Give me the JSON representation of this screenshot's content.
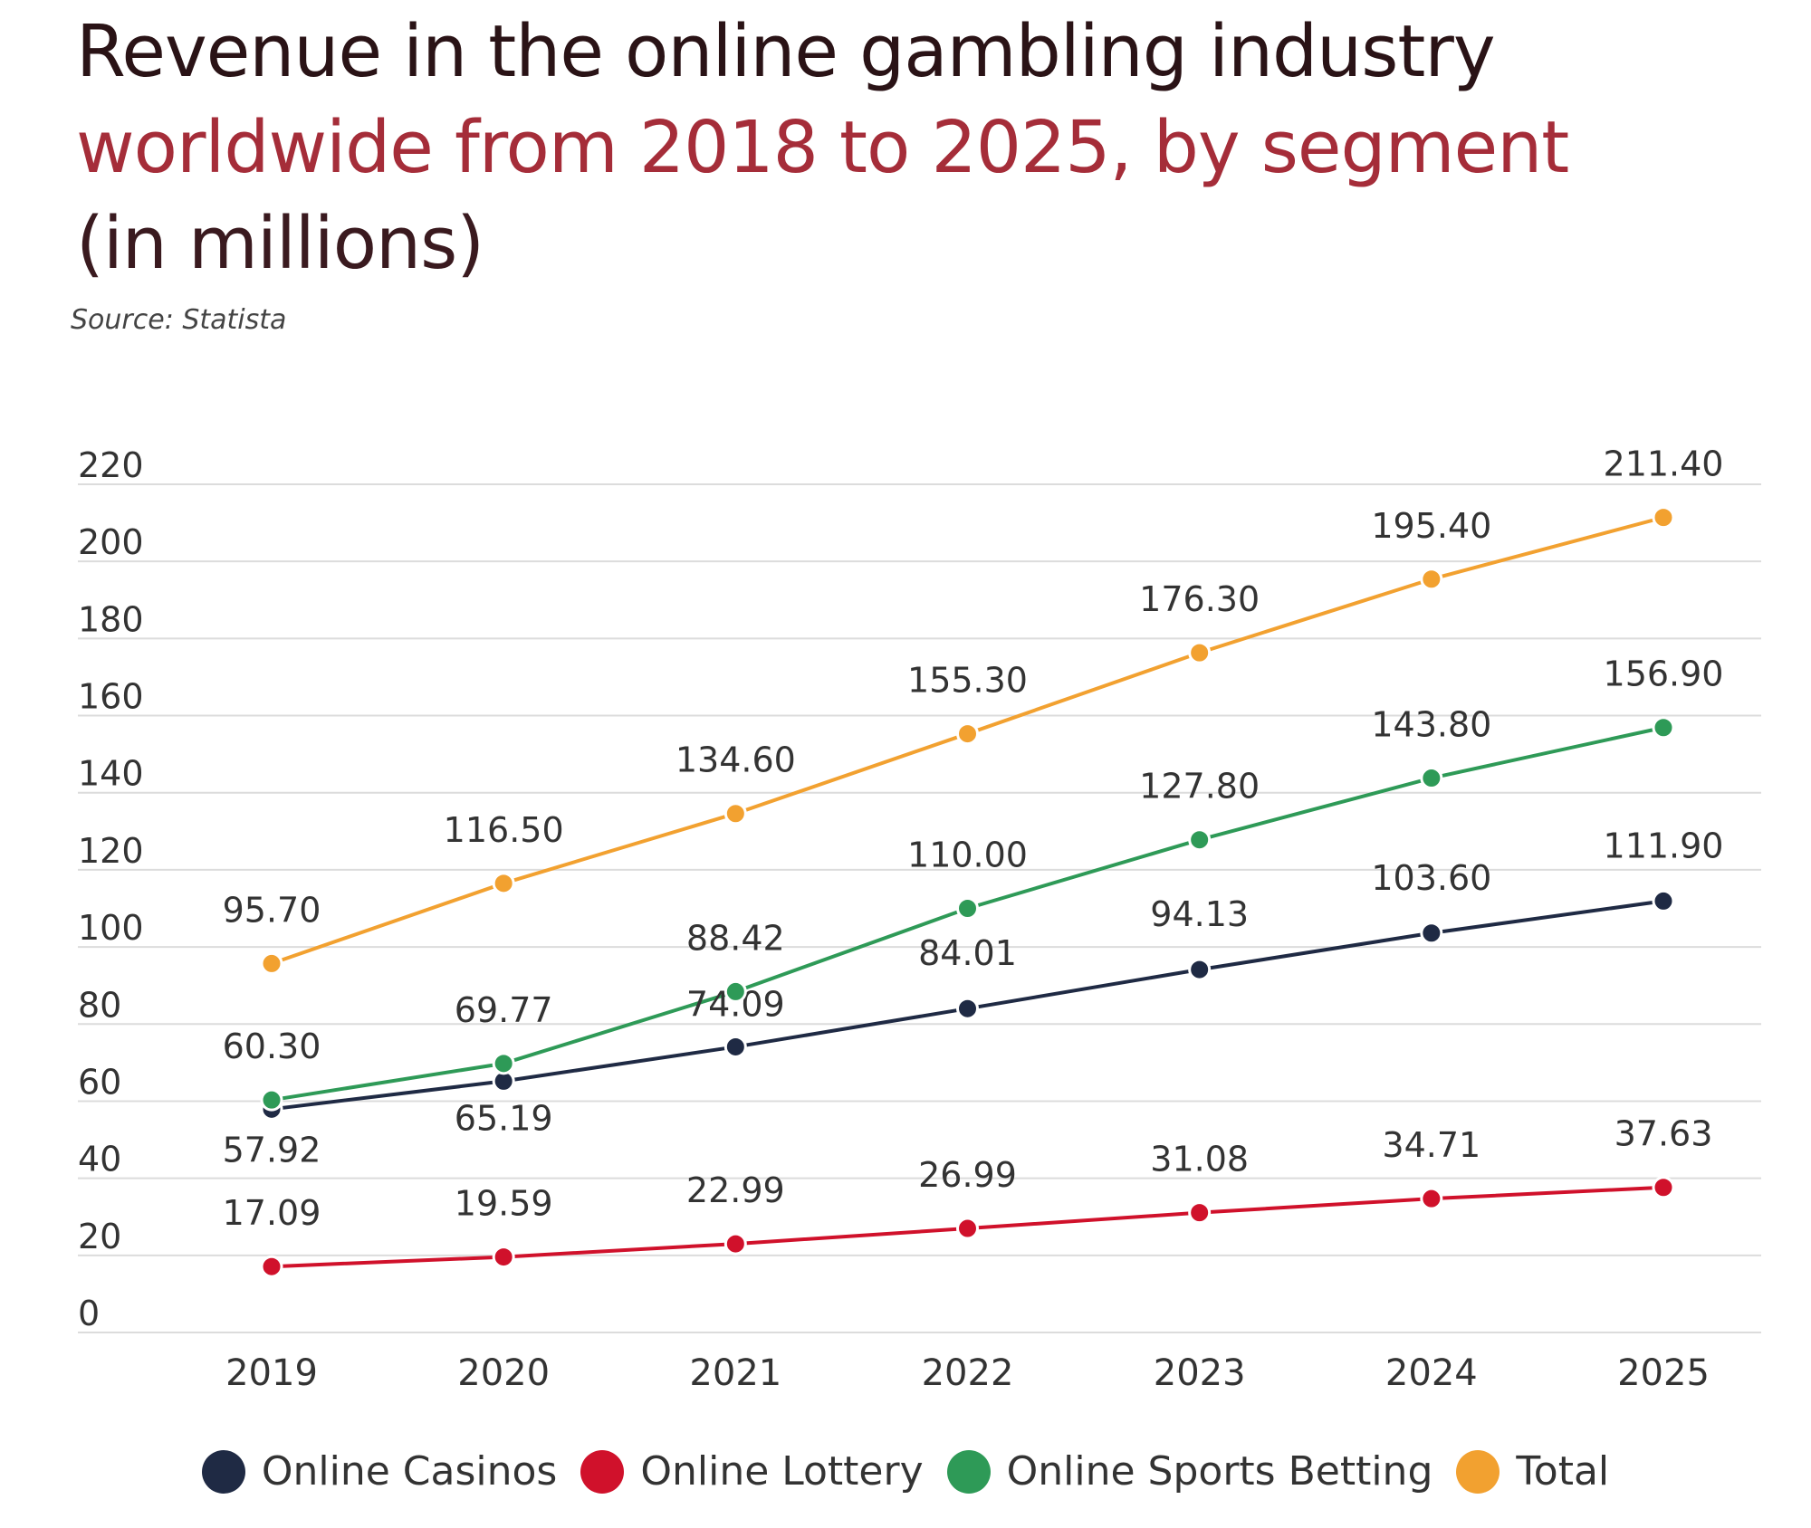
{
  "title": {
    "line1": "Revenue in the online gambling industry",
    "line2": "worldwide from 2018 to 2025, by segment",
    "line3": "(in millions)"
  },
  "source": "Source: Statista",
  "chart_data": {
    "type": "line",
    "title": "Revenue in the online gambling industry worldwide from 2018 to 2025, by segment (in millions)",
    "x": [
      "2019",
      "2020",
      "2021",
      "2022",
      "2023",
      "2024",
      "2025"
    ],
    "ylim": [
      0,
      220
    ],
    "yticks": [
      0,
      20,
      40,
      60,
      80,
      100,
      120,
      140,
      160,
      180,
      200,
      220
    ],
    "grid": true,
    "legend": "bottom",
    "series": [
      {
        "name": "Online Casinos",
        "color": "#1f2a44",
        "values": [
          57.92,
          65.19,
          74.09,
          84.01,
          94.13,
          103.6,
          111.9
        ],
        "labels": [
          "57.92",
          "65.19",
          "74.09",
          "84.01",
          "94.13",
          "103.60",
          "111.90"
        ]
      },
      {
        "name": "Online Lottery",
        "color": "#d0112b",
        "values": [
          17.09,
          19.59,
          22.99,
          26.99,
          31.08,
          34.71,
          37.63
        ],
        "labels": [
          "17.09",
          "19.59",
          "22.99",
          "26.99",
          "31.08",
          "34.71",
          "37.63"
        ]
      },
      {
        "name": "Online Sports Betting",
        "color": "#2e9a57",
        "values": [
          60.3,
          69.77,
          88.42,
          110.0,
          127.8,
          143.8,
          156.9
        ],
        "labels": [
          "60.30",
          "69.77",
          "88.42",
          "110.00",
          "127.80",
          "143.80",
          "156.90"
        ]
      },
      {
        "name": "Total",
        "color": "#f2a130",
        "values": [
          95.7,
          116.5,
          134.6,
          155.3,
          176.3,
          195.4,
          211.4
        ],
        "labels": [
          "95.70",
          "116.50",
          "134.60",
          "155.30",
          "176.30",
          "195.40",
          "211.40"
        ]
      }
    ]
  }
}
